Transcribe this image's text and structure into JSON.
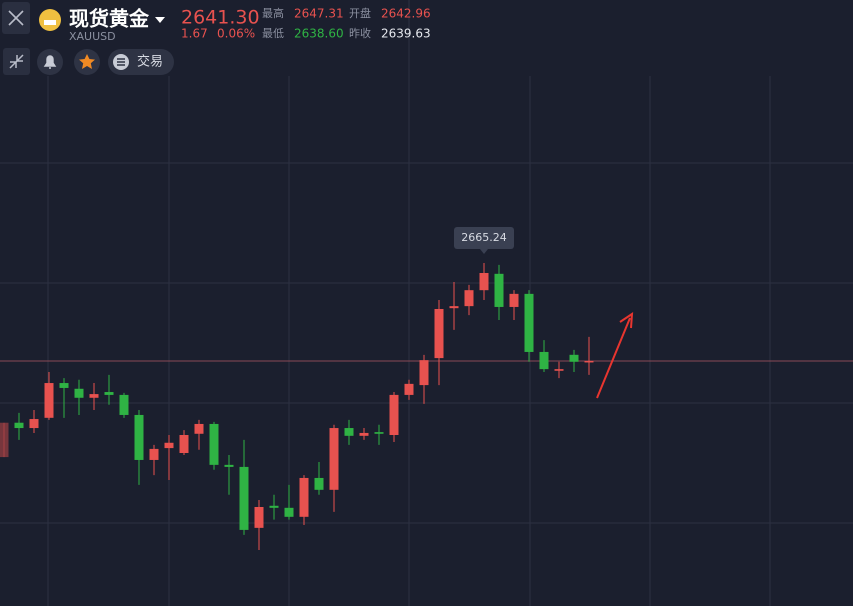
{
  "header": {
    "title": "现货黄金",
    "symbol": "XAUUSD",
    "price": "2641.30",
    "change": "1.67",
    "change_pct": "0.06%",
    "high_label": "最高",
    "high": "2647.31",
    "open_label": "开盘",
    "open": "2642.96",
    "low_label": "最低",
    "low": "2638.60",
    "prev_close_label": "昨收",
    "prev_close": "2639.63"
  },
  "toolbar": {
    "trade": "交易"
  },
  "chart_data": {
    "type": "candlestick",
    "ylim": [
      2581.4,
      2711.2
    ],
    "up_color": "#e8524f",
    "down_color": "#2fb344",
    "price_line": 2641.3,
    "max_label": {
      "value": 2665.24,
      "label": "2665.24"
    },
    "open": [
      2617.8,
      2626.2,
      2624.9,
      2627.4,
      2635.9,
      2634.5,
      2632.3,
      2633.7,
      2633.0,
      2628.1,
      2617.1,
      2620.0,
      2618.8,
      2623.5,
      2625.9,
      2615.9,
      2615.4,
      2600.5,
      2605.9,
      2605.4,
      2603.2,
      2612.7,
      2609.8,
      2624.9,
      2623.0,
      2623.9,
      2623.2,
      2633.0,
      2635.4,
      2642.0,
      2654.2,
      2654.7,
      2658.6,
      2662.6,
      2654.5,
      2657.7,
      2643.5,
      2638.9,
      2642.8,
      2641.1
    ],
    "high": [
      2626.2,
      2628.6,
      2629.3,
      2638.6,
      2637.1,
      2636.7,
      2635.9,
      2637.9,
      2633.5,
      2629.3,
      2620.8,
      2623.2,
      2624.4,
      2626.9,
      2626.4,
      2618.3,
      2622.0,
      2607.3,
      2608.6,
      2611.0,
      2613.4,
      2616.6,
      2625.7,
      2626.9,
      2624.9,
      2625.7,
      2633.7,
      2636.7,
      2642.8,
      2656.2,
      2660.6,
      2659.9,
      2665.24,
      2664.8,
      2658.6,
      2658.6,
      2646.4,
      2641.1,
      2644.0,
      2647.2
    ],
    "low": [
      2617.8,
      2622.0,
      2623.7,
      2626.9,
      2627.4,
      2628.1,
      2629.3,
      2630.6,
      2627.4,
      2611.0,
      2613.4,
      2612.2,
      2618.3,
      2619.6,
      2614.7,
      2608.6,
      2598.8,
      2595.1,
      2602.5,
      2602.5,
      2601.2,
      2608.6,
      2604.4,
      2620.8,
      2622.0,
      2620.8,
      2621.5,
      2631.8,
      2630.8,
      2635.4,
      2648.9,
      2652.5,
      2656.2,
      2651.3,
      2651.3,
      2641.1,
      2638.6,
      2637.1,
      2638.6,
      2637.9
    ],
    "close": [
      2626.2,
      2624.9,
      2627.1,
      2635.9,
      2634.7,
      2632.3,
      2633.2,
      2633.0,
      2628.1,
      2617.1,
      2619.8,
      2621.3,
      2623.2,
      2625.9,
      2615.9,
      2615.4,
      2600.0,
      2605.6,
      2605.4,
      2603.2,
      2612.7,
      2609.8,
      2624.9,
      2623.0,
      2623.7,
      2623.5,
      2633.0,
      2635.7,
      2641.5,
      2654.0,
      2654.7,
      2658.6,
      2662.8,
      2654.5,
      2657.7,
      2643.5,
      2639.3,
      2639.3,
      2641.1,
      2641.3
    ]
  }
}
